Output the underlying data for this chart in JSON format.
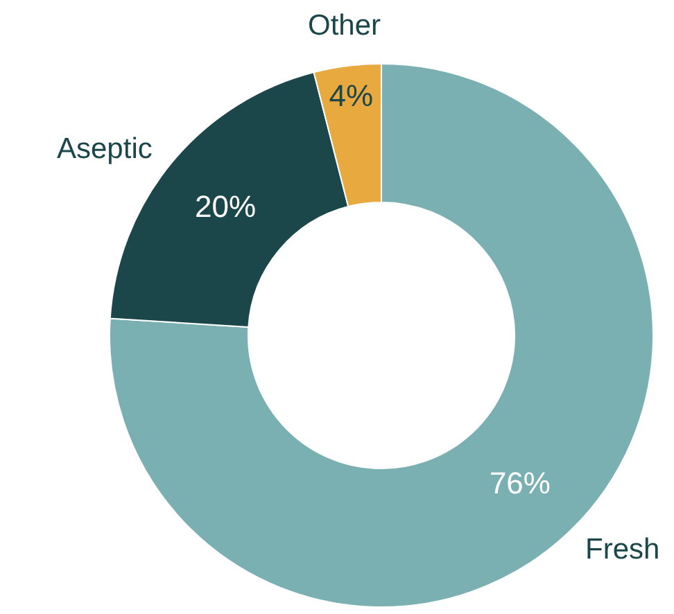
{
  "chart_data": {
    "type": "donut",
    "categories": [
      "Fresh",
      "Aseptic",
      "Other"
    ],
    "values": [
      76,
      20,
      4
    ],
    "colors": [
      "#7ab0b1",
      "#1b474b",
      "#e8a93e"
    ],
    "value_labels": [
      "76%",
      "20%",
      "4%"
    ],
    "legend": false
  }
}
